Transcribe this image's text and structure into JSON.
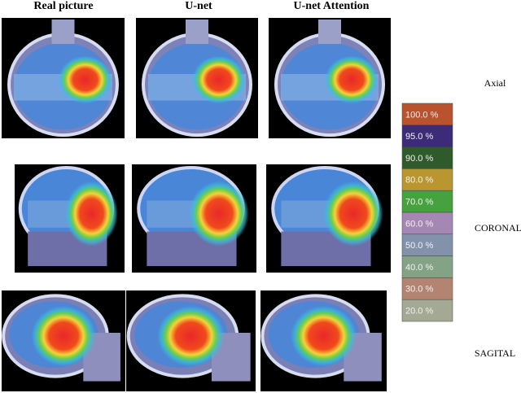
{
  "columns": [
    "Real picture",
    "U-net",
    "U-net Attention"
  ],
  "rows": [
    "Axial",
    "CORONAL",
    "SAGITAL"
  ],
  "legend": {
    "items": [
      {
        "label": "100.0 %",
        "color": "#b8532e"
      },
      {
        "label": "95.0 %",
        "color": "#3b2b78"
      },
      {
        "label": "90.0 %",
        "color": "#2e5a2c"
      },
      {
        "label": "80.0 %",
        "color": "#b9962f"
      },
      {
        "label": "70.0 %",
        "color": "#46a23e"
      },
      {
        "label": "60.0 %",
        "color": "#a587b4"
      },
      {
        "label": "50.0 %",
        "color": "#8392ab"
      },
      {
        "label": "40.0 %",
        "color": "#84a386"
      },
      {
        "label": "30.0 %",
        "color": "#b48472"
      },
      {
        "label": "20.0 %",
        "color": "#a3a992"
      }
    ]
  }
}
